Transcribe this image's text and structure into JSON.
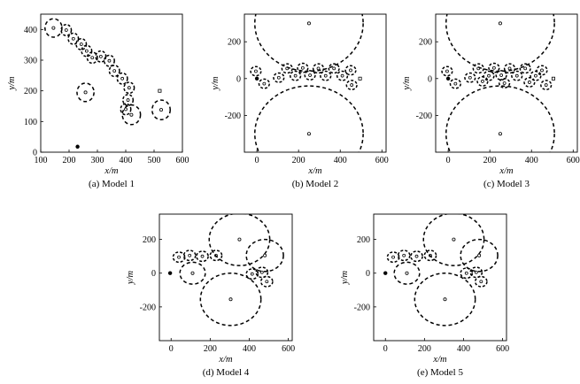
{
  "chart_data": [
    {
      "type": "scatter",
      "caption": "(a) Model 1",
      "xlabel": "x/m",
      "ylabel": "y/m",
      "xlim": [
        100,
        600
      ],
      "ylim": [
        0,
        450
      ],
      "xticks": [
        100,
        200,
        300,
        400,
        500,
        600
      ],
      "yticks": [
        0,
        100,
        200,
        300,
        400
      ],
      "large_circles": [
        {
          "x": 145,
          "y": 405,
          "r": 30
        },
        {
          "x": 258,
          "y": 195,
          "r": 30
        },
        {
          "x": 525,
          "y": 138,
          "r": 32
        },
        {
          "x": 420,
          "y": 122,
          "r": 32
        }
      ],
      "small_circles": [
        {
          "x": 190,
          "y": 398,
          "r": 18
        },
        {
          "x": 215,
          "y": 370,
          "r": 18
        },
        {
          "x": 243,
          "y": 352,
          "r": 18
        },
        {
          "x": 262,
          "y": 330,
          "r": 18
        },
        {
          "x": 282,
          "y": 308,
          "r": 18
        },
        {
          "x": 312,
          "y": 312,
          "r": 18
        },
        {
          "x": 342,
          "y": 298,
          "r": 18
        },
        {
          "x": 360,
          "y": 265,
          "r": 18
        },
        {
          "x": 388,
          "y": 240,
          "r": 18
        },
        {
          "x": 412,
          "y": 210,
          "r": 18
        },
        {
          "x": 408,
          "y": 170,
          "r": 18
        },
        {
          "x": 400,
          "y": 140,
          "r": 18
        }
      ],
      "small_markers": [
        {
          "x": 520,
          "y": 200
        }
      ],
      "star_markers": [
        {
          "x": 230,
          "y": 18
        }
      ]
    },
    {
      "type": "scatter",
      "caption": "(b) Model 2",
      "xlabel": "x/m",
      "ylabel": "y/m",
      "xlim": [
        -60,
        620
      ],
      "ylim": [
        -400,
        350
      ],
      "xticks": [
        0,
        200,
        400,
        600
      ],
      "yticks": [
        -200,
        0,
        200
      ],
      "large_circles": [
        {
          "x": 250,
          "y": 300,
          "r": 260
        },
        {
          "x": 250,
          "y": -300,
          "r": 260
        }
      ],
      "small_circles": [
        {
          "x": -5,
          "y": 40,
          "r": 25
        },
        {
          "x": 35,
          "y": -28,
          "r": 25
        },
        {
          "x": 105,
          "y": 5,
          "r": 25
        },
        {
          "x": 145,
          "y": 55,
          "r": 25
        },
        {
          "x": 185,
          "y": 15,
          "r": 25
        },
        {
          "x": 220,
          "y": 58,
          "r": 25
        },
        {
          "x": 255,
          "y": 18,
          "r": 25
        },
        {
          "x": 295,
          "y": 55,
          "r": 25
        },
        {
          "x": 330,
          "y": 15,
          "r": 25
        },
        {
          "x": 370,
          "y": 55,
          "r": 25
        },
        {
          "x": 410,
          "y": 15,
          "r": 25
        },
        {
          "x": 450,
          "y": 45,
          "r": 25
        },
        {
          "x": 455,
          "y": -35,
          "r": 25
        }
      ],
      "small_markers": [
        {
          "x": 495,
          "y": 0
        }
      ],
      "star_markers": [
        {
          "x": 0,
          "y": 0
        }
      ]
    },
    {
      "type": "scatter",
      "caption": "(c) Model 3",
      "xlabel": "x/m",
      "ylabel": "y/m",
      "xlim": [
        -60,
        620
      ],
      "ylim": [
        -400,
        350
      ],
      "xticks": [
        0,
        200,
        400,
        600
      ],
      "yticks": [
        -200,
        0,
        200
      ],
      "large_circles": [
        {
          "x": 250,
          "y": 300,
          "r": 260
        },
        {
          "x": 250,
          "y": -300,
          "r": 260
        }
      ],
      "small_circles": [
        {
          "x": -5,
          "y": 40,
          "r": 25
        },
        {
          "x": 35,
          "y": -28,
          "r": 25
        },
        {
          "x": 105,
          "y": 5,
          "r": 25
        },
        {
          "x": 145,
          "y": 55,
          "r": 25
        },
        {
          "x": 165,
          "y": -15,
          "r": 25
        },
        {
          "x": 195,
          "y": 15,
          "r": 25
        },
        {
          "x": 220,
          "y": 58,
          "r": 25
        },
        {
          "x": 255,
          "y": 18,
          "r": 25
        },
        {
          "x": 270,
          "y": -25,
          "r": 25
        },
        {
          "x": 295,
          "y": 55,
          "r": 25
        },
        {
          "x": 330,
          "y": 15,
          "r": 25
        },
        {
          "x": 370,
          "y": 55,
          "r": 25
        },
        {
          "x": 390,
          "y": -20,
          "r": 25
        },
        {
          "x": 420,
          "y": 15,
          "r": 25
        },
        {
          "x": 450,
          "y": 45,
          "r": 25
        },
        {
          "x": 470,
          "y": -35,
          "r": 25
        }
      ],
      "small_markers": [
        {
          "x": 505,
          "y": 0
        }
      ],
      "star_markers": [
        {
          "x": 0,
          "y": 0
        }
      ]
    },
    {
      "type": "scatter",
      "caption": "(d) Model 4",
      "xlabel": "x/m",
      "ylabel": "y/m",
      "xlim": [
        -60,
        620
      ],
      "ylim": [
        -400,
        350
      ],
      "xticks": [
        0,
        200,
        400,
        600
      ],
      "yticks": [
        -200,
        0,
        200
      ],
      "large_circles": [
        {
          "x": 350,
          "y": 200,
          "r": 155
        },
        {
          "x": 305,
          "y": -155,
          "r": 155
        },
        {
          "x": 480,
          "y": 105,
          "r": 95
        },
        {
          "x": 110,
          "y": 0,
          "r": 65
        }
      ],
      "small_circles": [
        {
          "x": 40,
          "y": 95,
          "r": 30
        },
        {
          "x": 95,
          "y": 105,
          "r": 30
        },
        {
          "x": 160,
          "y": 100,
          "r": 30
        },
        {
          "x": 230,
          "y": 105,
          "r": 30
        },
        {
          "x": 415,
          "y": -5,
          "r": 30
        },
        {
          "x": 465,
          "y": 5,
          "r": 30
        },
        {
          "x": 490,
          "y": -50,
          "r": 30
        }
      ],
      "small_markers": [],
      "star_markers": [
        {
          "x": -5,
          "y": 0
        }
      ]
    },
    {
      "type": "scatter",
      "caption": "(e) Model 5",
      "xlabel": "x/m",
      "ylabel": "y/m",
      "xlim": [
        -60,
        620
      ],
      "ylim": [
        -400,
        350
      ],
      "xticks": [
        0,
        200,
        400,
        600
      ],
      "yticks": [
        -200,
        0,
        200
      ],
      "large_circles": [
        {
          "x": 350,
          "y": 200,
          "r": 155
        },
        {
          "x": 305,
          "y": -155,
          "r": 155
        },
        {
          "x": 480,
          "y": 105,
          "r": 95
        },
        {
          "x": 110,
          "y": 0,
          "r": 65
        }
      ],
      "small_circles": [
        {
          "x": 40,
          "y": 95,
          "r": 30
        },
        {
          "x": 95,
          "y": 105,
          "r": 30
        },
        {
          "x": 160,
          "y": 100,
          "r": 30
        },
        {
          "x": 230,
          "y": 105,
          "r": 30
        },
        {
          "x": 415,
          "y": 0,
          "r": 30
        },
        {
          "x": 465,
          "y": 5,
          "r": 30
        },
        {
          "x": 490,
          "y": -50,
          "r": 30
        }
      ],
      "small_markers": [],
      "star_markers": [
        {
          "x": 0,
          "y": 0
        }
      ]
    }
  ]
}
